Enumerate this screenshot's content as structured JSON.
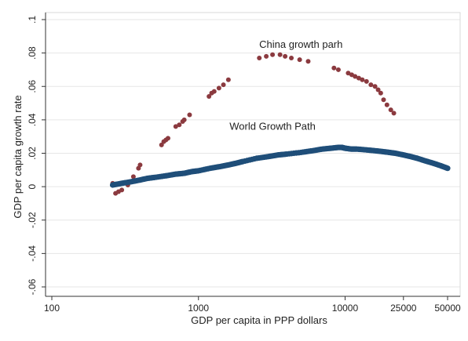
{
  "chart_data": {
    "type": "scatter",
    "xlabel": "GDP per capita in PPP dollars",
    "ylabel": "GDP per capita growth rate",
    "xscale": "log",
    "xlim": [
      100,
      50000
    ],
    "ylim": [
      -0.06,
      0.1
    ],
    "xticks": [
      {
        "value": 100,
        "label": "100"
      },
      {
        "value": 1000,
        "label": "1000"
      },
      {
        "value": 10000,
        "label": "10000"
      },
      {
        "value": 25000,
        "label": "25000"
      },
      {
        "value": 50000,
        "label": "50000"
      }
    ],
    "yticks": [
      {
        "value": 0.1,
        "label": ".1"
      },
      {
        "value": 0.08,
        "label": ".08"
      },
      {
        "value": 0.06,
        "label": ".06"
      },
      {
        "value": 0.04,
        "label": ".04"
      },
      {
        "value": 0.02,
        "label": ".02"
      },
      {
        "value": 0,
        "label": "0"
      },
      {
        "value": -0.02,
        "label": "-.02"
      },
      {
        "value": -0.04,
        "label": "-.04"
      },
      {
        "value": -0.06,
        "label": "-.06"
      }
    ],
    "grid": "horizontal",
    "annotations": [
      {
        "text": "China growth parh",
        "x": 5000,
        "y": 0.083
      },
      {
        "text": "World Growth Path",
        "x": 3200,
        "y": 0.034
      }
    ],
    "series": [
      {
        "color": "#8b3a3f",
        "marker": "circle",
        "points": [
          {
            "x": 260,
            "y": 0.002
          },
          {
            "x": 266,
            "y": 0.001
          },
          {
            "x": 272,
            "y": -0.004
          },
          {
            "x": 285,
            "y": -0.003
          },
          {
            "x": 300,
            "y": -0.002
          },
          {
            "x": 330,
            "y": 0.001
          },
          {
            "x": 360,
            "y": 0.006
          },
          {
            "x": 390,
            "y": 0.011
          },
          {
            "x": 400,
            "y": 0.013
          },
          {
            "x": 560,
            "y": 0.025
          },
          {
            "x": 580,
            "y": 0.027
          },
          {
            "x": 600,
            "y": 0.028
          },
          {
            "x": 620,
            "y": 0.029
          },
          {
            "x": 700,
            "y": 0.036
          },
          {
            "x": 740,
            "y": 0.037
          },
          {
            "x": 780,
            "y": 0.039
          },
          {
            "x": 800,
            "y": 0.04
          },
          {
            "x": 870,
            "y": 0.043
          },
          {
            "x": 1180,
            "y": 0.054
          },
          {
            "x": 1230,
            "y": 0.056
          },
          {
            "x": 1280,
            "y": 0.057
          },
          {
            "x": 1380,
            "y": 0.059
          },
          {
            "x": 1480,
            "y": 0.061
          },
          {
            "x": 1600,
            "y": 0.064
          },
          {
            "x": 2600,
            "y": 0.077
          },
          {
            "x": 2900,
            "y": 0.078
          },
          {
            "x": 3200,
            "y": 0.079
          },
          {
            "x": 3600,
            "y": 0.079
          },
          {
            "x": 3900,
            "y": 0.078
          },
          {
            "x": 4300,
            "y": 0.077
          },
          {
            "x": 4900,
            "y": 0.076
          },
          {
            "x": 5600,
            "y": 0.075
          },
          {
            "x": 8400,
            "y": 0.071
          },
          {
            "x": 9000,
            "y": 0.07
          },
          {
            "x": 10500,
            "y": 0.068
          },
          {
            "x": 11100,
            "y": 0.067
          },
          {
            "x": 11700,
            "y": 0.066
          },
          {
            "x": 12400,
            "y": 0.065
          },
          {
            "x": 13100,
            "y": 0.064
          },
          {
            "x": 14000,
            "y": 0.063
          },
          {
            "x": 15000,
            "y": 0.061
          },
          {
            "x": 16000,
            "y": 0.06
          },
          {
            "x": 16800,
            "y": 0.058
          },
          {
            "x": 17500,
            "y": 0.056
          },
          {
            "x": 18300,
            "y": 0.052
          },
          {
            "x": 19300,
            "y": 0.049
          },
          {
            "x": 20500,
            "y": 0.046
          },
          {
            "x": 21500,
            "y": 0.044
          }
        ]
      },
      {
        "color": "#1f4e79",
        "marker": "circle",
        "points": [
          {
            "x": 260,
            "y": 0.001
          },
          {
            "x": 300,
            "y": 0.002
          },
          {
            "x": 350,
            "y": 0.003
          },
          {
            "x": 400,
            "y": 0.004
          },
          {
            "x": 450,
            "y": 0.005
          },
          {
            "x": 500,
            "y": 0.0055
          },
          {
            "x": 600,
            "y": 0.0065
          },
          {
            "x": 700,
            "y": 0.0075
          },
          {
            "x": 800,
            "y": 0.008
          },
          {
            "x": 900,
            "y": 0.009
          },
          {
            "x": 1000,
            "y": 0.0095
          },
          {
            "x": 1200,
            "y": 0.011
          },
          {
            "x": 1400,
            "y": 0.012
          },
          {
            "x": 1600,
            "y": 0.013
          },
          {
            "x": 1800,
            "y": 0.014
          },
          {
            "x": 2000,
            "y": 0.015
          },
          {
            "x": 2500,
            "y": 0.017
          },
          {
            "x": 3000,
            "y": 0.018
          },
          {
            "x": 3500,
            "y": 0.019
          },
          {
            "x": 4000,
            "y": 0.0195
          },
          {
            "x": 5000,
            "y": 0.0205
          },
          {
            "x": 6000,
            "y": 0.0215
          },
          {
            "x": 7000,
            "y": 0.0225
          },
          {
            "x": 8000,
            "y": 0.023
          },
          {
            "x": 9000,
            "y": 0.0235
          },
          {
            "x": 9500,
            "y": 0.0235
          },
          {
            "x": 10000,
            "y": 0.023
          },
          {
            "x": 11000,
            "y": 0.0225
          },
          {
            "x": 12000,
            "y": 0.0225
          },
          {
            "x": 14000,
            "y": 0.022
          },
          {
            "x": 16000,
            "y": 0.0215
          },
          {
            "x": 18000,
            "y": 0.021
          },
          {
            "x": 20000,
            "y": 0.0205
          },
          {
            "x": 22000,
            "y": 0.02
          },
          {
            "x": 25000,
            "y": 0.019
          },
          {
            "x": 28000,
            "y": 0.018
          },
          {
            "x": 31000,
            "y": 0.017
          },
          {
            "x": 35000,
            "y": 0.0155
          },
          {
            "x": 40000,
            "y": 0.014
          },
          {
            "x": 45000,
            "y": 0.0125
          },
          {
            "x": 50000,
            "y": 0.011
          }
        ]
      }
    ]
  }
}
